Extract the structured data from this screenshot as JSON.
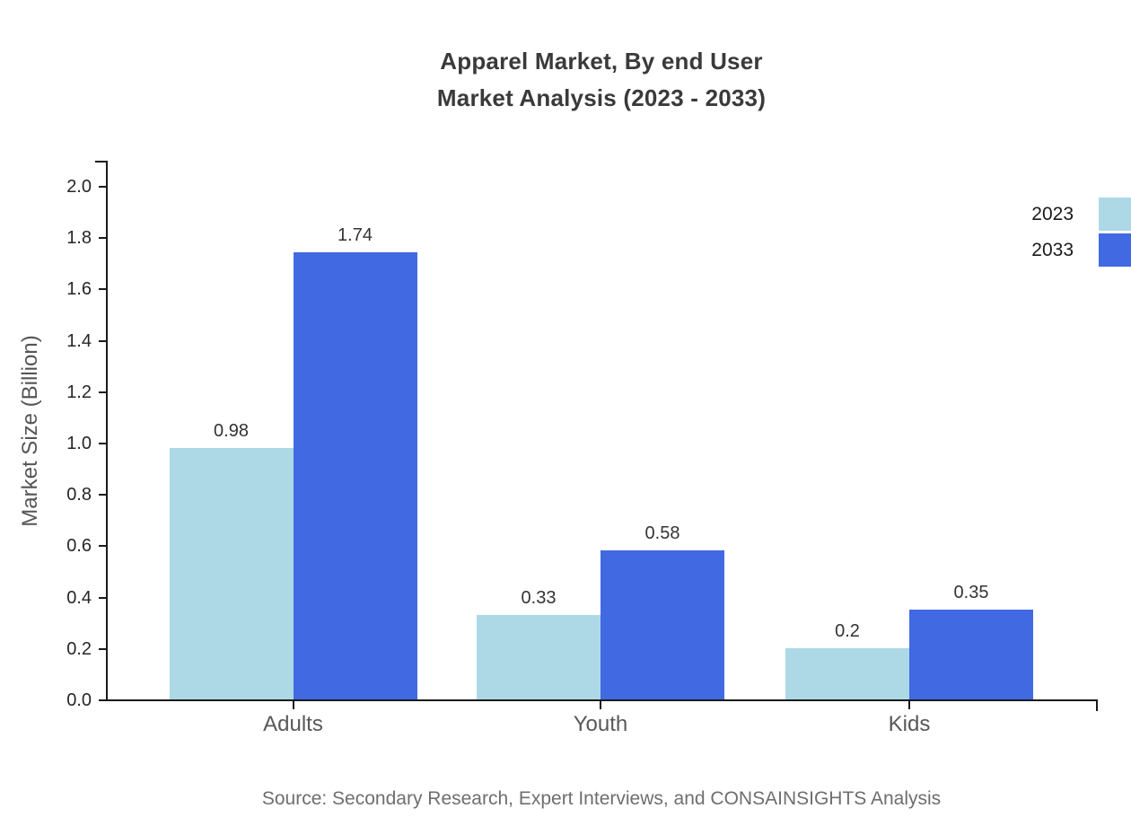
{
  "chart_data": {
    "type": "bar",
    "title": "Apparel Market, By end User\nMarket Analysis (2023 - 2033)",
    "title_lines": [
      "Apparel Market, By end User",
      "Market Analysis (2023 - 2033)"
    ],
    "categories": [
      "Adults",
      "Youth",
      "Kids"
    ],
    "series": [
      {
        "name": "2023",
        "color": "#ADD8E6",
        "values": [
          0.98,
          0.33,
          0.2
        ]
      },
      {
        "name": "2033",
        "color": "#4169E1",
        "values": [
          1.74,
          0.58,
          0.35
        ]
      }
    ],
    "value_labels": {
      "2023": [
        "0.98",
        "0.33",
        "0.2"
      ],
      "2033": [
        "1.74",
        "0.58",
        "0.35"
      ]
    },
    "xlabel": "",
    "ylabel": "Market Size (Billion)",
    "ylim": [
      0.0,
      2.0
    ],
    "ytick_step": 0.2,
    "ytick_labels": [
      "0.0",
      "0.2",
      "0.4",
      "0.6",
      "0.8",
      "1.0",
      "1.2",
      "1.4",
      "1.6",
      "1.8",
      "2.0"
    ],
    "grid": false,
    "legend_position": "top-right",
    "legend_entries": [
      "2023",
      "2033"
    ],
    "source": "Source: Secondary Research, Expert Interviews, and CONSAINSIGHTS Analysis"
  },
  "colors": {
    "series_2023": "#ADD8E6",
    "series_2033": "#4169E1",
    "axis": "#1a1a1a",
    "title_text": "#3a3a3a",
    "axis_title_text": "#555555",
    "category_text": "#585858",
    "source_text": "#6e6e6e",
    "background": "#ffffff"
  }
}
